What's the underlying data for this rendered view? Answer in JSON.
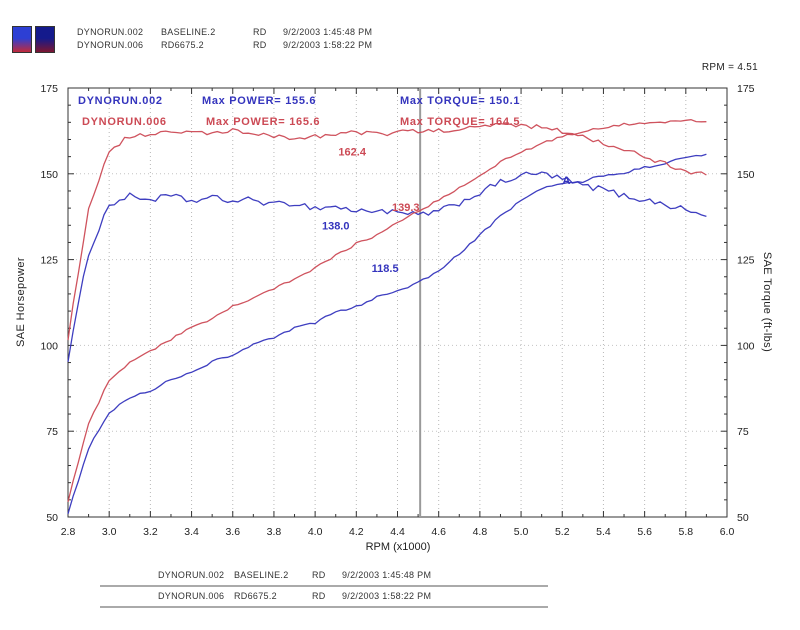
{
  "window": {
    "cursor_readout": "RPM = 4.51"
  },
  "legend": {
    "icons": [
      {
        "name": "run1-swatch",
        "top_color": "#2d3fd4",
        "bottom_color": "#c22a3a"
      },
      {
        "name": "run2-swatch",
        "top_color": "#141a8c",
        "bottom_color": "#7c1630"
      }
    ],
    "rows": [
      {
        "run": "DYNORUN.002",
        "desc": "BASELINE.2",
        "operator": "RD",
        "datetime": "9/2/2003 1:45:48 PM"
      },
      {
        "run": "DYNORUN.006",
        "desc": "RD6675.2",
        "operator": "RD",
        "datetime": "9/2/2003 1:58:22 PM"
      }
    ]
  },
  "chart_data": {
    "type": "line",
    "xlabel": "RPM (x1000)",
    "ylabel_left": "SAE Horsepower",
    "ylabel_right": "SAE Torque (ft-lbs)",
    "xlim": [
      2.8,
      6.0
    ],
    "ylim": [
      50,
      175
    ],
    "x_ticks": [
      2.8,
      3.0,
      3.2,
      3.4,
      3.6,
      3.8,
      4.0,
      4.2,
      4.4,
      4.6,
      4.8,
      5.0,
      5.2,
      5.4,
      5.6,
      5.8,
      6.0
    ],
    "y_ticks": [
      50,
      75,
      100,
      125,
      150,
      175
    ],
    "grid": "dotted",
    "cursor_rpm": 4.51,
    "title_lines": [
      {
        "run": "DYNORUN.002",
        "power_text": "Max POWER= 155.6",
        "torque_text": "Max TORQUE= 150.1",
        "color": "#3434bd"
      },
      {
        "run": "DYNORUN.006",
        "power_text": "Max POWER= 165.6",
        "torque_text": "Max TORQUE= 164.5",
        "color": "#cc4a55"
      }
    ],
    "cursor_labels": [
      {
        "text": "162.4",
        "rpm": 4.18,
        "value": 156.5,
        "color": "#cc4a55"
      },
      {
        "text": "139.3",
        "rpm": 4.44,
        "value": 140.3,
        "color": "#cc4a55"
      },
      {
        "text": "138.0",
        "rpm": 4.1,
        "value": 135.0,
        "color": "#3434bd"
      },
      {
        "text": "118.5",
        "rpm": 4.34,
        "value": 122.5,
        "color": "#3434bd"
      }
    ],
    "annotations": [
      {
        "text": "A",
        "rpm": 5.22,
        "value": 148.2,
        "color": "#3434bd"
      }
    ],
    "rpm": [
      2.8,
      2.9,
      3.0,
      3.1,
      3.2,
      3.3,
      3.4,
      3.5,
      3.6,
      3.7,
      3.8,
      3.9,
      4.0,
      4.1,
      4.2,
      4.3,
      4.4,
      4.5,
      4.6,
      4.7,
      4.8,
      4.9,
      5.0,
      5.1,
      5.2,
      5.3,
      5.4,
      5.5,
      5.6,
      5.7,
      5.8,
      5.9
    ],
    "series": [
      {
        "name": "baseline-torque",
        "run": "DYNORUN.002",
        "color": "#3434bd",
        "jitter": 0.9,
        "values": [
          96,
          127,
          141,
          143.5,
          142.5,
          143.5,
          142,
          143,
          142,
          142.5,
          141,
          141.5,
          140,
          140.5,
          139,
          139.5,
          138.5,
          138,
          139,
          141.5,
          144.5,
          147.5,
          149.5,
          150.1,
          148.5,
          146.5,
          145.5,
          143.5,
          142.5,
          141,
          139.5,
          137.5
        ]
      },
      {
        "name": "baseline-power",
        "run": "DYNORUN.002",
        "color": "#3434bd",
        "jitter": 0.35,
        "values": [
          51.2,
          70.1,
          80.5,
          84.7,
          86.8,
          90.2,
          91.9,
          95.3,
          97.3,
          100.4,
          102.0,
          105.1,
          106.6,
          109.7,
          111.2,
          114.2,
          116.0,
          118.2,
          121.7,
          126.6,
          132.1,
          137.6,
          142.3,
          145.8,
          147.0,
          147.8,
          149.6,
          150.3,
          151.9,
          153.0,
          154.8,
          155.6
        ]
      },
      {
        "name": "modified-torque",
        "run": "DYNORUN.006",
        "color": "#cc4a55",
        "jitter": 0.7,
        "values": [
          102,
          140,
          157,
          161,
          161.5,
          162,
          162.5,
          161.5,
          162.5,
          161.5,
          161,
          160.5,
          161,
          161.5,
          162,
          161.5,
          162,
          162.4,
          162.5,
          163,
          163.5,
          164.5,
          164.2,
          163.5,
          162.5,
          161,
          159,
          157,
          155,
          153,
          151,
          149.5
        ]
      },
      {
        "name": "modified-power",
        "run": "DYNORUN.006",
        "color": "#cc4a55",
        "jitter": 0.35,
        "values": [
          54.4,
          77.3,
          89.7,
          95.0,
          98.4,
          101.8,
          105.2,
          107.6,
          111.4,
          113.8,
          116.5,
          119.2,
          122.6,
          126.1,
          129.6,
          132.2,
          135.7,
          139.2,
          142.3,
          145.9,
          149.4,
          153.5,
          156.3,
          158.8,
          160.9,
          162.5,
          163.5,
          164.4,
          164.9,
          165.2,
          165.6,
          165.4
        ]
      }
    ]
  },
  "footer_table": {
    "rows": [
      {
        "run": "DYNORUN.002",
        "desc": "BASELINE.2",
        "operator": "RD",
        "datetime": "9/2/2003 1:45:48 PM"
      },
      {
        "run": "DYNORUN.006",
        "desc": "RD6675.2",
        "operator": "RD",
        "datetime": "9/2/2003 1:58:22 PM"
      }
    ]
  }
}
